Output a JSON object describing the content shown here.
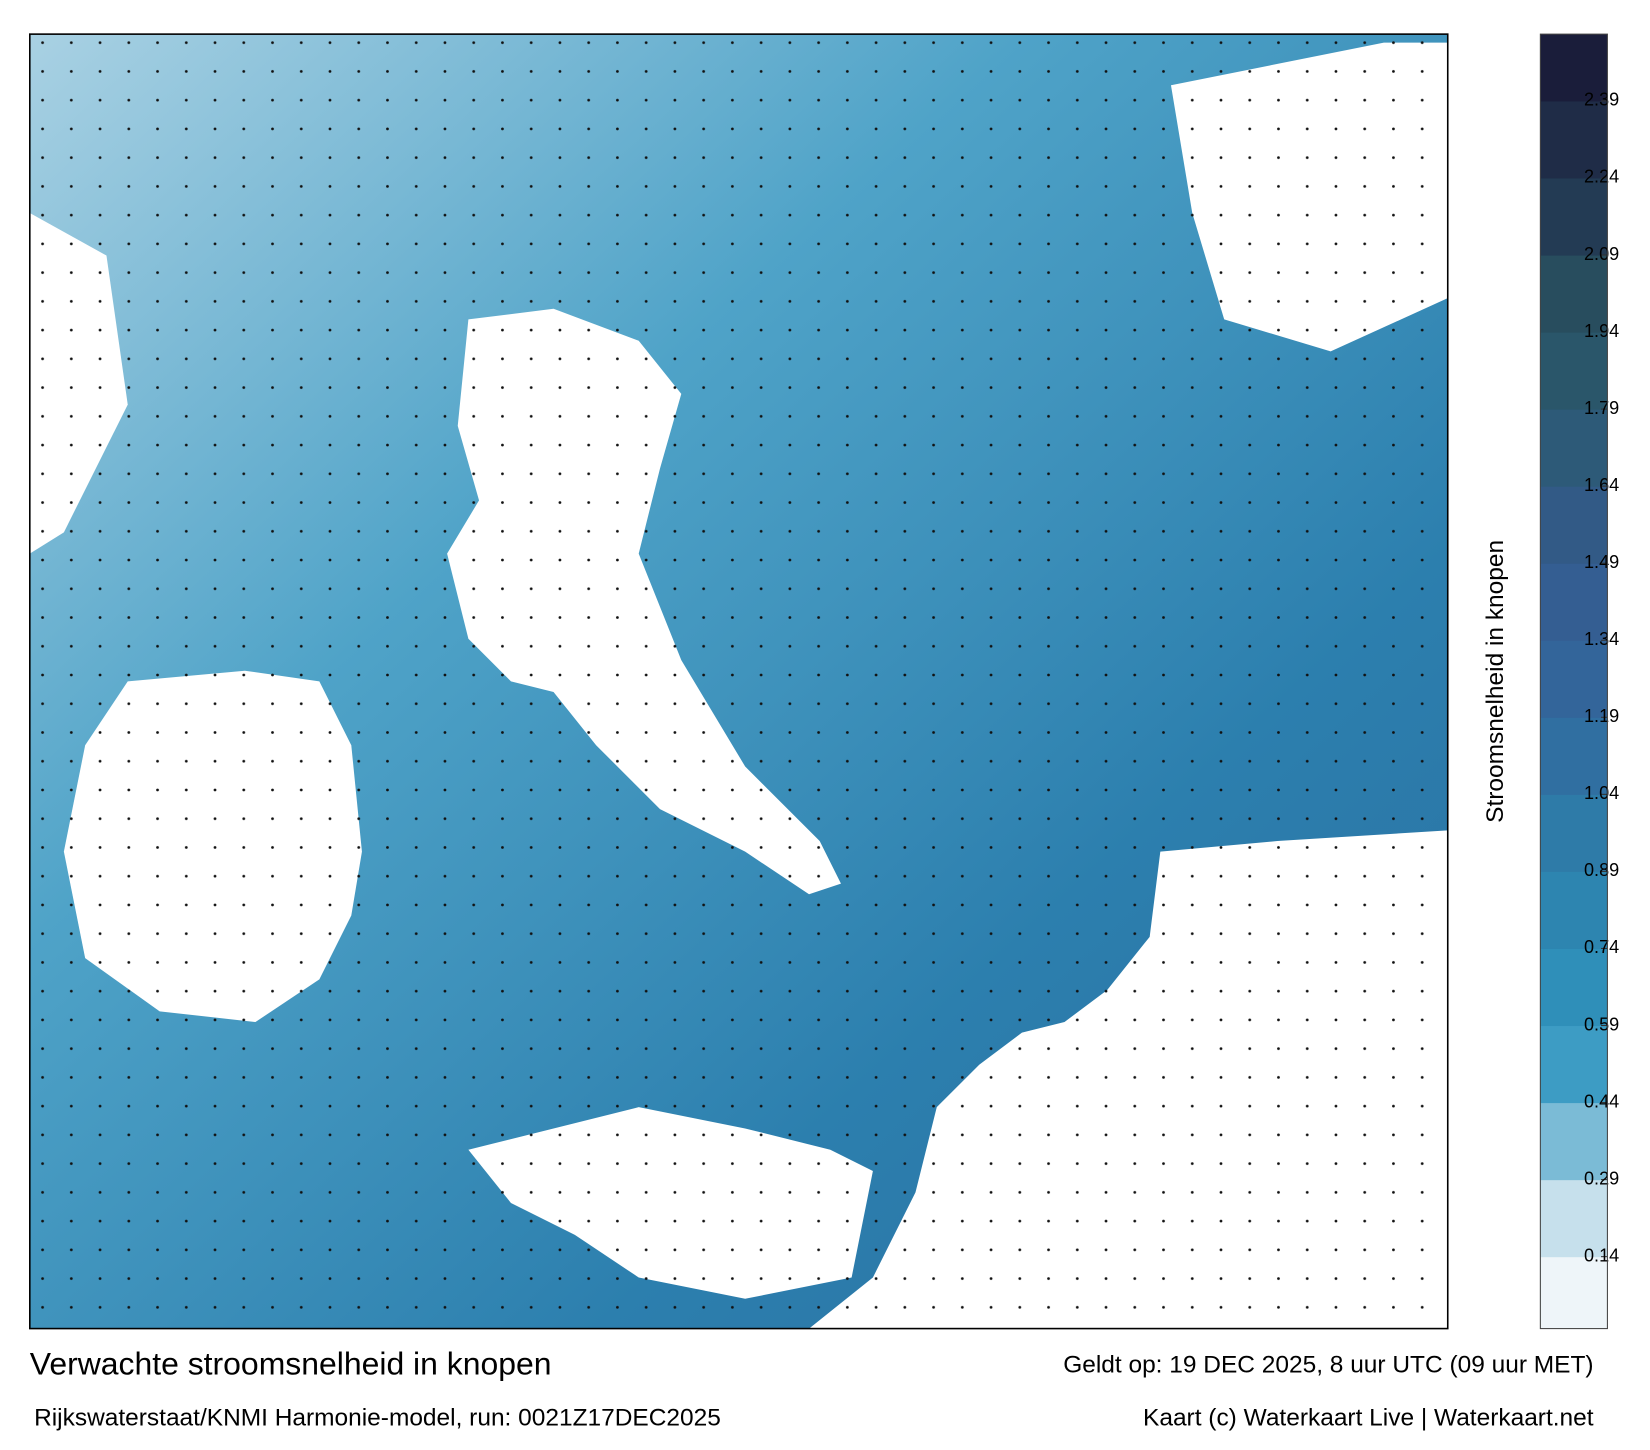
{
  "title": "Verwachte stroomsnelheid in knopen",
  "source": "Rijkswaterstaat/KNMI Harmonie-model, run: 0021Z17DEC2025",
  "valid_time": "Geldt op: 19 DEC 2025, 8 uur UTC (09 uur MET)",
  "credit": "Kaart (c) Waterkaart Live | Waterkaart.net",
  "colorbar": {
    "label": "Stroomsnelheid in knopen",
    "lim": [
      0,
      2.52
    ],
    "ticks": [
      0.14,
      0.29,
      0.44,
      0.59,
      0.74,
      0.89,
      1.04,
      1.19,
      1.34,
      1.49,
      1.64,
      1.79,
      1.94,
      2.09,
      2.24,
      2.39
    ],
    "colors": [
      "#eef5f9",
      "#c6e0ec",
      "#7bbbd6",
      "#3d9cc4",
      "#2f8fb9",
      "#2d85b0",
      "#2e7ba8",
      "#306fa1",
      "#33659a",
      "#345e92",
      "#325a86",
      "#2d5a78",
      "#2a566a",
      "#284d5e",
      "#233b54",
      "#1f2c47",
      "#1a1d3a"
    ]
  }
}
